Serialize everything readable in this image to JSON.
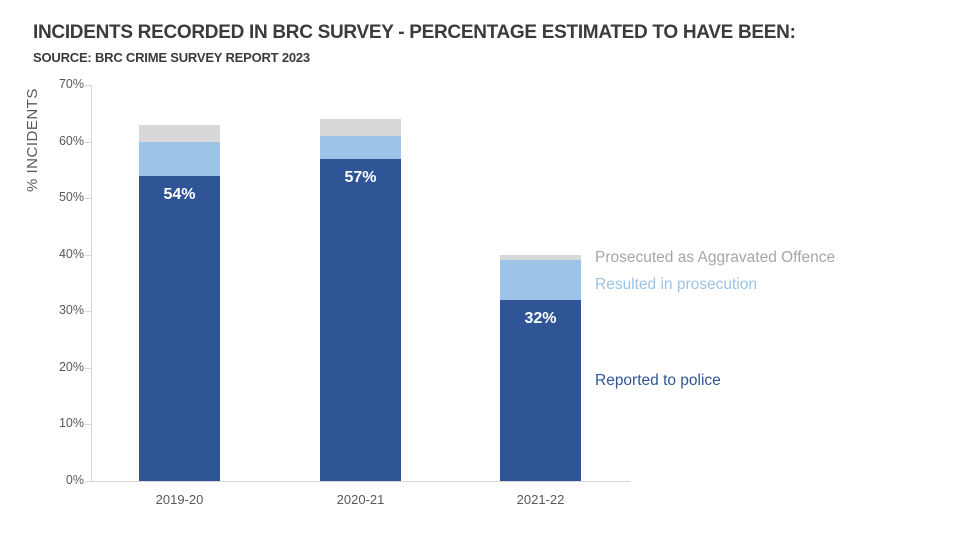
{
  "title": "INCIDENTS RECORDED IN BRC SURVEY - PERCENTAGE ESTIMATED TO HAVE BEEN:",
  "subtitle": "SOURCE: BRC CRIME SURVEY REPORT 2023",
  "chart_data": {
    "type": "bar",
    "stacked": true,
    "title": "INCIDENTS RECORDED IN BRC SURVEY - PERCENTAGE ESTIMATED TO HAVE BEEN:",
    "subtitle": "SOURCE: BRC CRIME SURVEY REPORT 2023",
    "categories": [
      "2019-20",
      "2020-21",
      "2021-22"
    ],
    "series": [
      {
        "name": "Reported to police",
        "color": "#2F5597",
        "label_color": "#2F5597",
        "values": [
          54,
          57,
          32
        ]
      },
      {
        "name": "Resulted in prosecution",
        "color": "#9DC3E6",
        "label_color": "#9DC3E6",
        "values": [
          6,
          4,
          7
        ]
      },
      {
        "name": "Prosecuted as Aggravated Offence",
        "color": "#D8D8D8",
        "label_color": "#A6A6A6",
        "values": [
          3,
          3,
          1
        ]
      }
    ],
    "bar_totals": [
      63,
      64,
      40
    ],
    "bar_labels": [
      "54%",
      "57%",
      "32%"
    ],
    "bar_label_series": "Reported to police",
    "xlabel": "",
    "ylabel": "% INCIDENTS",
    "ylim": [
      0,
      70
    ],
    "ytick_step": 10,
    "ytick_suffix": "%",
    "grid": false,
    "legend_position": "right-of-last-bar, colored text labels, no swatches",
    "background_color": "#FFFFFF",
    "axis_color": "#D6D6D6",
    "tick_text_color": "#595959"
  }
}
